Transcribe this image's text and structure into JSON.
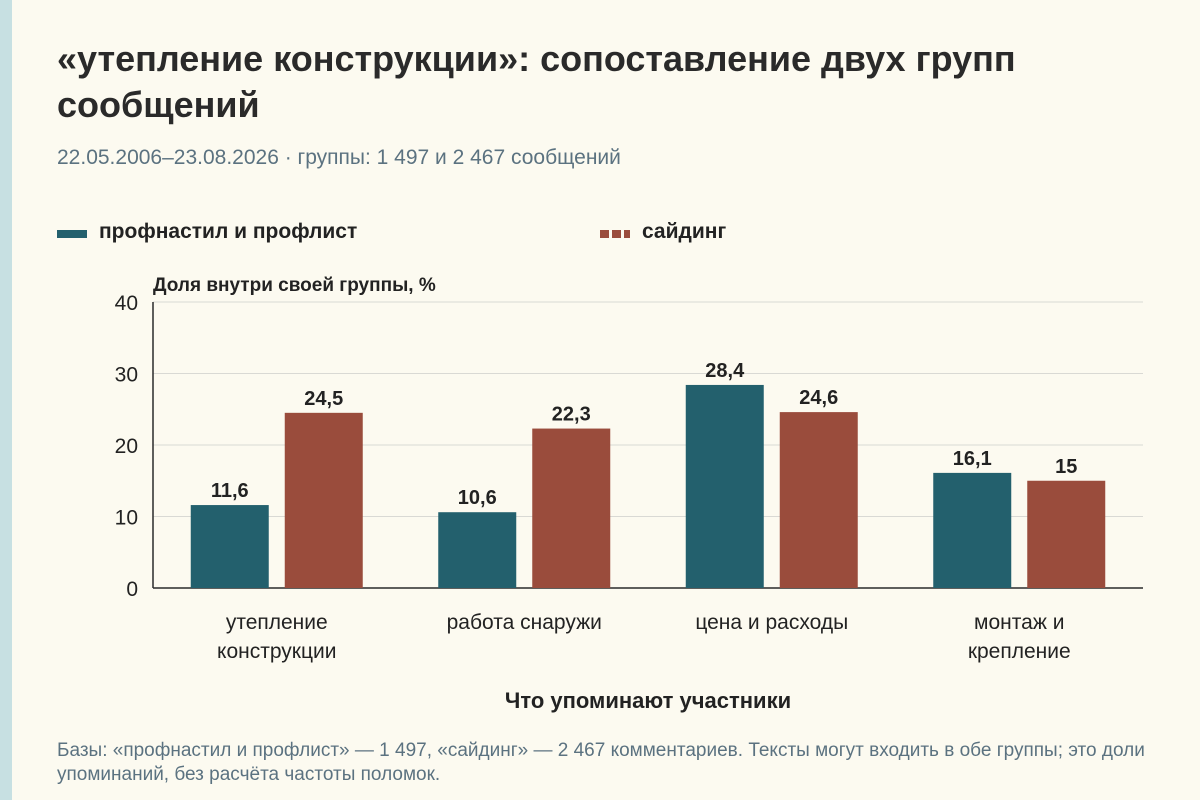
{
  "title": "«утепление конструкции»: сопоставление двух групп сообщений",
  "subtitle": "22.05.2006–23.08.2026 · группы: 1 497 и 2 467 сообщений",
  "footnote": "Базы: «профнастил и профлист» — 1 497, «сайдинг» — 2 467 комментариев. Тексты могут входить в обе группы; это доли упоминаний, без расчёта частоты поломок.",
  "colors": {
    "series1": "#23606d",
    "series2": "#9a4c3c"
  },
  "chart_data": {
    "type": "bar",
    "ylabel": "Доля внутри своей группы, %",
    "xlabel": "Что упоминают участники",
    "ylim": [
      0,
      40
    ],
    "yticks": [
      "0",
      "10",
      "20",
      "30",
      "40"
    ],
    "grid": true,
    "legend": "top",
    "categories": [
      [
        "утепление",
        "конструкции"
      ],
      [
        "работа снаружи"
      ],
      [
        "цена и расходы"
      ],
      [
        "монтаж и",
        "крепление"
      ]
    ],
    "series": [
      {
        "name": "профнастил и профлист",
        "values": [
          11.6,
          10.6,
          28.4,
          16.1
        ],
        "labels": [
          "11,6",
          "10,6",
          "28,4",
          "16,1"
        ]
      },
      {
        "name": "сайдинг",
        "values": [
          24.5,
          22.3,
          24.6,
          15
        ],
        "labels": [
          "24,5",
          "22,3",
          "24,6",
          "15"
        ]
      }
    ]
  }
}
